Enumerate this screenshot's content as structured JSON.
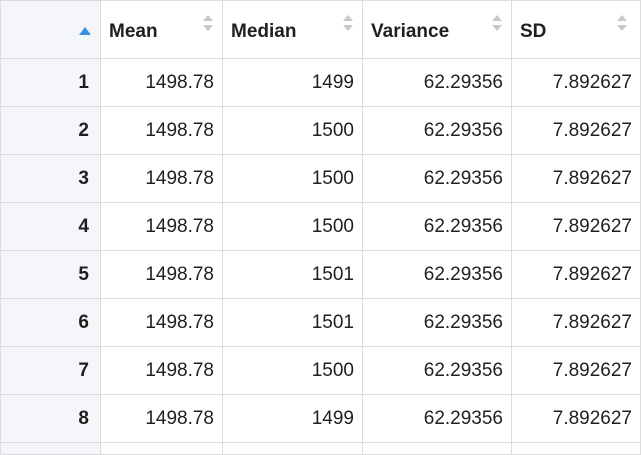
{
  "table": {
    "columns": [
      {
        "key": "mean",
        "label": "Mean"
      },
      {
        "key": "median",
        "label": "Median"
      },
      {
        "key": "variance",
        "label": "Variance"
      },
      {
        "key": "sd",
        "label": "SD"
      }
    ],
    "sort_state": "ascending on row index",
    "rows": [
      {
        "index": "1",
        "mean": "1498.78",
        "median": "1499",
        "variance": "62.29356",
        "sd": "7.892627"
      },
      {
        "index": "2",
        "mean": "1498.78",
        "median": "1500",
        "variance": "62.29356",
        "sd": "7.892627"
      },
      {
        "index": "3",
        "mean": "1498.78",
        "median": "1500",
        "variance": "62.29356",
        "sd": "7.892627"
      },
      {
        "index": "4",
        "mean": "1498.78",
        "median": "1500",
        "variance": "62.29356",
        "sd": "7.892627"
      },
      {
        "index": "5",
        "mean": "1498.78",
        "median": "1501",
        "variance": "62.29356",
        "sd": "7.892627"
      },
      {
        "index": "6",
        "mean": "1498.78",
        "median": "1501",
        "variance": "62.29356",
        "sd": "7.892627"
      },
      {
        "index": "7",
        "mean": "1498.78",
        "median": "1500",
        "variance": "62.29356",
        "sd": "7.892627"
      },
      {
        "index": "8",
        "mean": "1498.78",
        "median": "1499",
        "variance": "62.29356",
        "sd": "7.892627"
      }
    ]
  },
  "colors": {
    "header_index_bg": "#f4f6f9",
    "sort_active": "#3d8fe0",
    "sort_inactive": "#c8c8c8",
    "grid_line": "#dcdcdc"
  },
  "icons": {
    "sort_active": "sort-ascending-icon",
    "sort_inactive": "sort-toggle-icon"
  }
}
